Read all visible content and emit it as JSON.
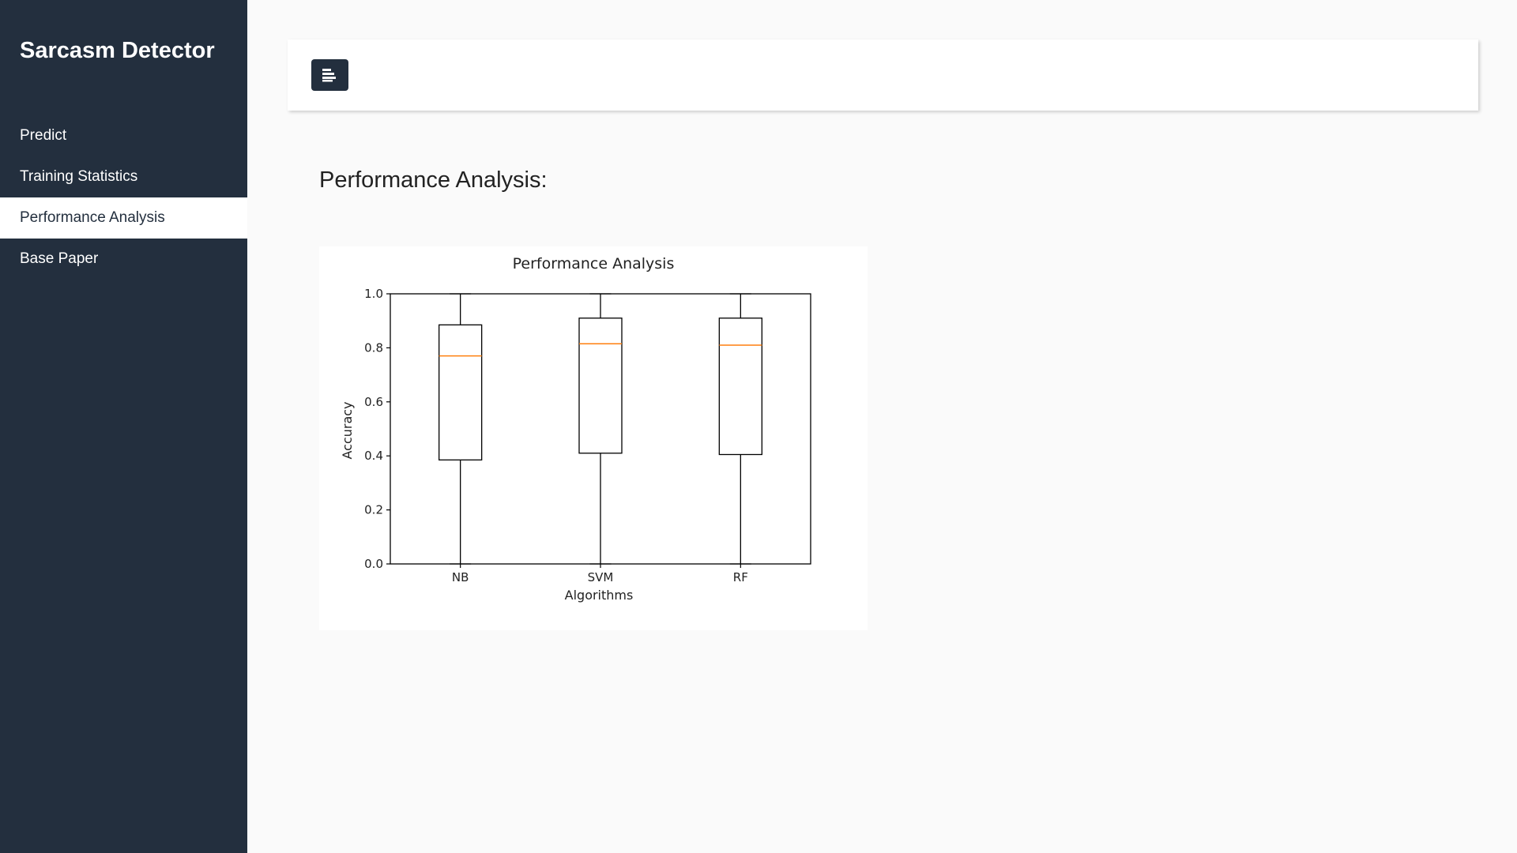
{
  "sidebar": {
    "brand": "Sarcasm Detector",
    "items": [
      {
        "label": "Predict"
      },
      {
        "label": "Training Statistics"
      },
      {
        "label": "Performance Analysis"
      },
      {
        "label": "Base Paper"
      }
    ],
    "active_index": 2
  },
  "topbar": {
    "toggle_icon": "align-left-icon"
  },
  "main": {
    "heading": "Performance Analysis:"
  },
  "colors": {
    "sidebar_bg": "#232f3e",
    "median_line": "#ff7f0e"
  },
  "chart_data": {
    "type": "box",
    "title": "Performance Analysis",
    "xlabel": "Algorithms",
    "ylabel": "Accuracy",
    "ylim": [
      0,
      1
    ],
    "yticks": [
      "0.0",
      "0.2",
      "0.4",
      "0.6",
      "0.8",
      "1.0"
    ],
    "categories": [
      "NB",
      "SVM",
      "RF"
    ],
    "boxes": [
      {
        "min": 0.0,
        "q1": 0.385,
        "median": 0.77,
        "q3": 0.885,
        "max": 1.0
      },
      {
        "min": 0.0,
        "q1": 0.41,
        "median": 0.815,
        "q3": 0.91,
        "max": 1.0
      },
      {
        "min": 0.0,
        "q1": 0.405,
        "median": 0.81,
        "q3": 0.91,
        "max": 1.0
      }
    ]
  }
}
